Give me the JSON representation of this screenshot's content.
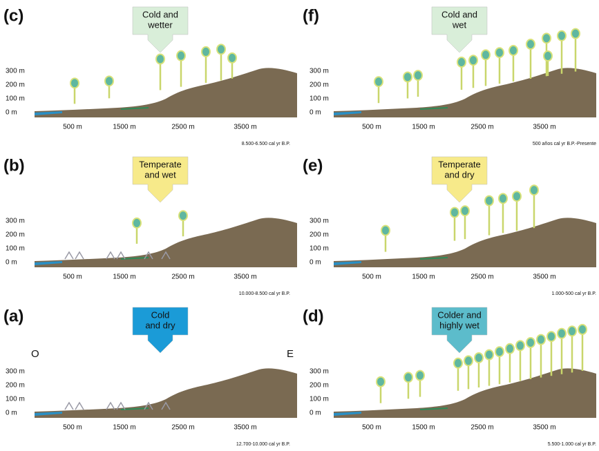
{
  "panels": [
    {
      "label": "(c)",
      "climate": [
        "Cold and",
        "wetter"
      ],
      "y_labels": [
        "300 m",
        "200 m",
        "100 m",
        "0 m"
      ],
      "x_labels": [
        "500 m",
        "1500 m",
        "2500 m",
        "3500 m"
      ],
      "period": "8.500-6.500 cal yr B.P."
    },
    {
      "label": "(b)",
      "climate": [
        "Temperate",
        "and wet"
      ],
      "y_labels": [
        "300 m",
        "200 m",
        "100 m",
        "0 m"
      ],
      "x_labels": [
        "500 m",
        "1500 m",
        "2500 m",
        "3500 m"
      ],
      "period": "10.000-8.500 cal yr B.P."
    },
    {
      "label": "(a)",
      "climate": [
        "Cold",
        "and dry"
      ],
      "y_labels": [
        "300 m",
        "200 m",
        "100 m",
        "0 m"
      ],
      "x_labels": [
        "500 m",
        "1500 m",
        "2500 m",
        "3500 m"
      ],
      "period": "12.700-10.000 cal yr B.P.",
      "west": "O",
      "east": "E"
    },
    {
      "label": "(f)",
      "climate": [
        "Cold and",
        "wet"
      ],
      "y_labels": [
        "300 m",
        "200 m",
        "100 m",
        "0 m"
      ],
      "x_labels": [
        "500 m",
        "1500 m",
        "2500 m",
        "3500 m"
      ],
      "period": "500 años cal yr B.P.-Presente"
    },
    {
      "label": "(e)",
      "climate": [
        "Temperate",
        "and dry"
      ],
      "y_labels": [
        "300 m",
        "200 m",
        "100 m",
        "0 m"
      ],
      "x_labels": [
        "500 m",
        "1500 m",
        "2500 m",
        "3500 m"
      ],
      "period": "1.000-500 cal yr  B.P."
    },
    {
      "label": "(d)",
      "climate": [
        "Colder and",
        "highly wet"
      ],
      "y_labels": [
        "300 m",
        "200 m",
        "100 m",
        "0 m"
      ],
      "x_labels": [
        "500 m",
        "1500 m",
        "2500 m",
        "3500 m"
      ],
      "period": "5.500-1.000 cal yr B.P."
    }
  ]
}
